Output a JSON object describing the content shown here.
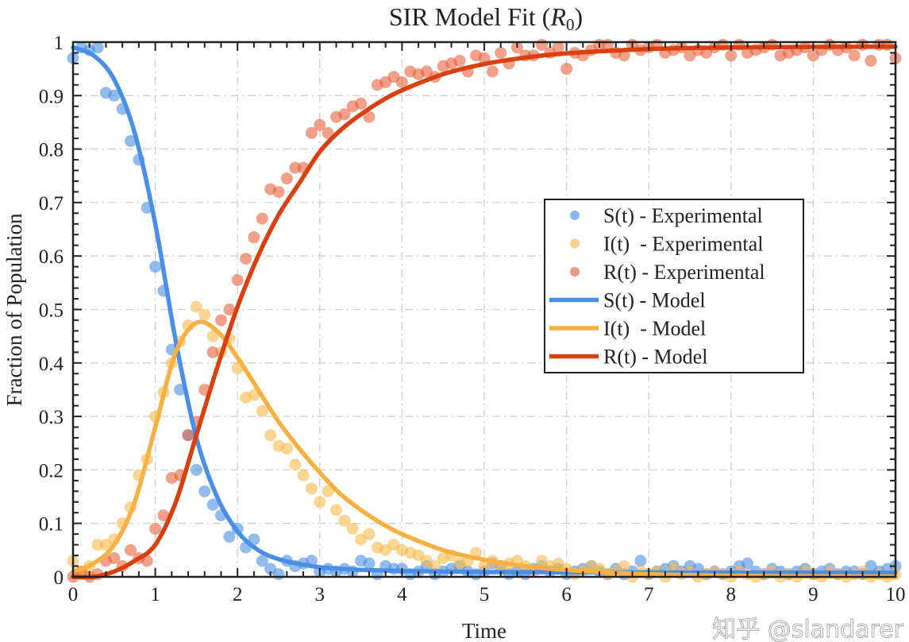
{
  "chart_data": {
    "type": "line",
    "title": "SIR Model Fit (",
    "title_symbol": "R",
    "title_subscript": "0",
    "title_close": ")",
    "xlabel": "Time",
    "ylabel": "Fraction of Population",
    "xlim": [
      0,
      10
    ],
    "ylim": [
      0,
      1
    ],
    "xticks": [
      "0",
      "1",
      "2",
      "3",
      "4",
      "5",
      "6",
      "7",
      "8",
      "9",
      "10"
    ],
    "yticks": [
      "0",
      "0.1",
      "0.2",
      "0.3",
      "0.4",
      "0.5",
      "0.6",
      "0.7",
      "0.8",
      "0.9",
      "1"
    ],
    "grid": true,
    "legend_placement": "center-right",
    "experimental_t_start": 0,
    "experimental_t_step": 0.1,
    "experimental": [
      {
        "name": "S(t) - Experimental",
        "color": "#4a90e2",
        "values": [
          0.97,
          0.99,
          0.985,
          0.99,
          0.905,
          0.9,
          0.875,
          0.815,
          0.78,
          0.69,
          0.58,
          0.535,
          0.425,
          0.35,
          0.265,
          0.2,
          0.16,
          0.135,
          0.115,
          0.075,
          0.09,
          0.055,
          0.07,
          0.03,
          0.015,
          0.005,
          0.03,
          0.02,
          0.025,
          0.03,
          0.01,
          0.015,
          0.01,
          0.015,
          0.01,
          0.03,
          0.025,
          0.005,
          0.02,
          0.015,
          0.015,
          0.005,
          0.01,
          0.02,
          0.005,
          0.01,
          0.015,
          0.02,
          0.01,
          0.005,
          0.01,
          0.025,
          0.02,
          0.005,
          0.01,
          0.005,
          0.015,
          0.02,
          0.01,
          0.015,
          0.005,
          0.01,
          0.015,
          0.02,
          0.01,
          0.005,
          0.015,
          0.005,
          0.01,
          0.03,
          0.005,
          0.01,
          0.015,
          0.02,
          0.01,
          0.02,
          0.015,
          0.005,
          0.01,
          0.005,
          0.01,
          0.02,
          0.025,
          0.01,
          0.005,
          0.015,
          0.01,
          0.005,
          0.01,
          0.015,
          0.005,
          0.01,
          0.015,
          0.005,
          0.01,
          0.01,
          0.005,
          0.02,
          0.01,
          0.015,
          0.02
        ]
      },
      {
        "name": "I(t)  - Experimental",
        "color": "#f9b94a",
        "values": [
          0.03,
          0.005,
          0.02,
          0.06,
          0.06,
          0.07,
          0.1,
          0.13,
          0.19,
          0.22,
          0.3,
          0.345,
          0.4,
          0.44,
          0.47,
          0.505,
          0.49,
          0.45,
          0.42,
          0.445,
          0.39,
          0.335,
          0.34,
          0.31,
          0.265,
          0.245,
          0.24,
          0.21,
          0.19,
          0.165,
          0.14,
          0.16,
          0.125,
          0.105,
          0.09,
          0.07,
          0.08,
          0.055,
          0.05,
          0.06,
          0.05,
          0.045,
          0.04,
          0.03,
          0.02,
          0.035,
          0.04,
          0.025,
          0.03,
          0.045,
          0.02,
          0.03,
          0.015,
          0.025,
          0.03,
          0.02,
          0.01,
          0.03,
          0.02,
          0.025,
          0.015,
          0.005,
          0.01,
          0.02,
          0.015,
          0.005,
          0.01,
          0.02,
          0.0,
          0.01,
          0.005,
          0.01,
          0.0,
          0.015,
          0.005,
          0.01,
          0.0,
          0.005,
          0.01,
          0.005,
          0.0,
          0.01,
          0.005,
          0.0,
          0.005,
          0.01,
          0.0,
          0.005,
          0.0,
          0.01,
          0.005,
          0.0,
          0.01,
          0.005,
          0.0,
          0.005,
          0.01,
          0.0,
          0.005,
          0.0,
          0.005
        ]
      },
      {
        "name": "R(t) - Experimental",
        "color": "#e8603c",
        "values": [
          0,
          0.01,
          0,
          0.005,
          0.03,
          0.035,
          0.02,
          0.05,
          0.035,
          0.03,
          0.09,
          0.115,
          0.185,
          0.19,
          0.265,
          0.29,
          0.35,
          0.42,
          0.48,
          0.5,
          0.555,
          0.595,
          0.635,
          0.67,
          0.725,
          0.72,
          0.745,
          0.765,
          0.765,
          0.83,
          0.845,
          0.83,
          0.86,
          0.865,
          0.88,
          0.885,
          0.86,
          0.92,
          0.925,
          0.935,
          0.925,
          0.945,
          0.94,
          0.945,
          0.935,
          0.955,
          0.96,
          0.965,
          0.945,
          0.975,
          0.97,
          0.945,
          0.98,
          0.96,
          0.99,
          0.975,
          0.975,
          0.995,
          0.98,
          0.99,
          0.95,
          0.98,
          0.975,
          0.985,
          0.995,
          0.995,
          0.98,
          0.975,
          0.995,
          0.985,
          0.99,
          0.995,
          0.98,
          0.985,
          0.99,
          0.975,
          0.985,
          0.98,
          0.99,
          0.995,
          0.975,
          0.995,
          0.98,
          0.985,
          0.99,
          0.995,
          0.975,
          0.98,
          0.985,
          0.99,
          0.975,
          0.985,
          0.995,
          0.985,
          0.99,
          0.975,
          0.995,
          0.965,
          0.995,
          0.995,
          0.97
        ]
      }
    ],
    "model_t": [
      0,
      0.25,
      0.5,
      0.75,
      1,
      1.25,
      1.5,
      1.75,
      2,
      2.25,
      2.5,
      2.75,
      3,
      3.25,
      3.5,
      3.75,
      4,
      4.5,
      5,
      5.5,
      6,
      7,
      8,
      9,
      10
    ],
    "model": [
      {
        "name": "S(t) - Model",
        "color": "#4a8fe7",
        "values": [
          0.99,
          0.975,
          0.93,
          0.83,
          0.66,
          0.44,
          0.26,
          0.15,
          0.085,
          0.05,
          0.033,
          0.024,
          0.018,
          0.015,
          0.013,
          0.012,
          0.011,
          0.01,
          0.009,
          0.0088,
          0.0085,
          0.0082,
          0.008,
          0.008,
          0.008
        ]
      },
      {
        "name": "I(t)  - Model",
        "color": "#f8b040",
        "values": [
          0.01,
          0.025,
          0.06,
          0.14,
          0.28,
          0.42,
          0.475,
          0.46,
          0.41,
          0.35,
          0.29,
          0.24,
          0.195,
          0.155,
          0.125,
          0.1,
          0.08,
          0.05,
          0.032,
          0.02,
          0.013,
          0.005,
          0.002,
          0.001,
          0.0005
        ]
      },
      {
        "name": "R(t) - Model",
        "color": "#d9400e",
        "values": [
          0,
          0,
          0.01,
          0.03,
          0.06,
          0.14,
          0.265,
          0.39,
          0.505,
          0.6,
          0.677,
          0.736,
          0.795,
          0.835,
          0.865,
          0.89,
          0.91,
          0.94,
          0.959,
          0.971,
          0.979,
          0.987,
          0.99,
          0.991,
          0.9915
        ]
      }
    ]
  },
  "watermark": "知乎 @slandarer"
}
